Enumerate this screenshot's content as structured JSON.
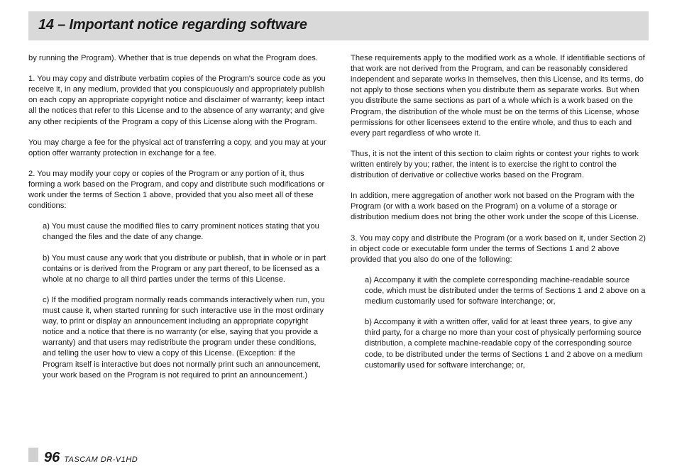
{
  "header": {
    "title": "14 – Important notice regarding software"
  },
  "left": {
    "p1": "by running the Program). Whether that is true depends on what the Program does.",
    "p2": "1. You may copy and distribute verbatim copies of the Program's source code as you receive it, in any medium, provided that you conspicuously and appropriately publish on each copy an appropriate copyright notice and disclaimer of warranty; keep intact all the notices that refer to this License and to the absence of any warranty; and give any other recipients of the Program a copy of this License along with the Program.",
    "p3": "You may charge a fee for the physical act of transferring a copy, and you may at your option offer warranty protection in exchange for a fee.",
    "p4": "2. You may modify your copy or copies of the Program or any portion of it, thus forming a work based on the Program, and copy and distribute such modifications or work under the terms of Section 1 above, provided that you also meet all of these conditions:",
    "a": "a) You must cause the modified files to carry prominent notices stating that you changed the files and the date of any change.",
    "b": "b) You must cause any work that you distribute or publish, that in whole or in part contains or is derived from the Program or any part thereof, to be licensed as a whole at no charge to all third parties under the terms of this License.",
    "c": "c) If the modified program normally reads commands interactively when run, you must cause it, when started running for such interactive use in the most ordinary way, to print or display an announcement including an appropriate copyright notice and a notice that there is no warranty (or else, saying that you provide a warranty) and that users may redistribute the program under these conditions, and telling the user how to view a copy of this License. (Exception: if the Program itself is interactive but does not normally print such an announcement, your work based on the Program is not required to print an announcement.)"
  },
  "right": {
    "p1": "These requirements apply to the modified work as a whole. If identifiable sections of that work are not derived from the Program, and can be reasonably considered independent and separate works in themselves, then this License, and its terms, do not apply to those sections when you distribute them as separate works. But when you distribute the same sections as part of a whole which is a work based on the Program, the distribution of the whole must be on the terms of this License, whose permissions for other licensees extend to the entire whole, and thus to each and every part regardless of who wrote it.",
    "p2": "Thus, it is not the intent of this section to claim rights or contest your rights to work written entirely by you; rather, the intent is to exercise the right to control the distribution of derivative or collective works based on the Program.",
    "p3": "In addition, mere aggregation of another work not based on the Program with the Program (or with a work based on the Program) on a volume of a storage or distribution medium does not bring the other work under the scope of this License.",
    "p4": "3. You may copy and distribute the Program (or a work based on it, under Section 2) in object code or executable form under the terms of Sections 1 and 2 above provided that you also do one of the following:",
    "a": "a) Accompany it with the complete corresponding machine-readable source code, which must be distributed under the terms of Sections 1 and 2 above on a medium customarily used for software interchange; or,",
    "b": "b) Accompany it with a written offer, valid for at least three years, to give any third party, for a charge no more than your cost of physically performing source distribution, a complete machine-readable copy of the corresponding source code, to be distributed under the terms of Sections 1 and 2 above on a medium customarily used for software interchange; or,"
  },
  "footer": {
    "page": "96",
    "model": "TASCAM  DR-V1HD"
  }
}
